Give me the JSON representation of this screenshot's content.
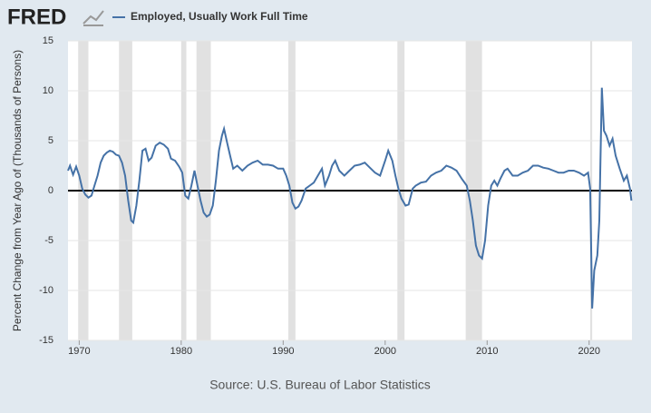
{
  "logo": "FRED",
  "chart_data": {
    "type": "line",
    "y_label": "Percent Change from Year Ago of (Thousands of Persons)",
    "source": "Source: U.S. Bureau of Labor Statistics",
    "xlim": [
      1968.9,
      2024.2
    ],
    "xticks": [
      1970,
      1980,
      1990,
      2000,
      2010,
      2020
    ],
    "ylim": [
      -15,
      15
    ],
    "yticks": [
      15,
      10,
      5,
      0,
      -5,
      -10,
      -15
    ],
    "grid": true,
    "zero_line": true,
    "recessions": [
      [
        1969.9,
        1970.9
      ],
      [
        1973.9,
        1975.2
      ],
      [
        1980.0,
        1980.5
      ],
      [
        1981.5,
        1982.9
      ],
      [
        1990.5,
        1991.2
      ],
      [
        2001.2,
        2001.9
      ],
      [
        2007.9,
        2009.5
      ],
      [
        2020.1,
        2020.3
      ]
    ],
    "x": [
      1968.9,
      1969.1,
      1969.4,
      1969.7,
      1970.0,
      1970.3,
      1970.6,
      1970.9,
      1971.2,
      1971.5,
      1971.8,
      1972.1,
      1972.4,
      1972.7,
      1973.0,
      1973.3,
      1973.6,
      1973.9,
      1974.2,
      1974.5,
      1974.8,
      1975.1,
      1975.3,
      1975.6,
      1975.9,
      1976.2,
      1976.5,
      1976.8,
      1977.1,
      1977.5,
      1977.9,
      1978.3,
      1978.7,
      1979.0,
      1979.4,
      1979.8,
      1980.1,
      1980.4,
      1980.7,
      1981.0,
      1981.3,
      1981.6,
      1981.9,
      1982.2,
      1982.5,
      1982.8,
      1983.1,
      1983.4,
      1983.7,
      1984.0,
      1984.2,
      1984.5,
      1984.8,
      1985.1,
      1985.5,
      1986.0,
      1986.5,
      1987.0,
      1987.5,
      1988.0,
      1988.5,
      1989.0,
      1989.5,
      1990.0,
      1990.3,
      1990.6,
      1990.9,
      1991.2,
      1991.5,
      1991.8,
      1992.2,
      1992.6,
      1993.0,
      1993.4,
      1993.8,
      1994.1,
      1994.5,
      1994.8,
      1995.1,
      1995.5,
      1996.0,
      1996.5,
      1997.0,
      1997.5,
      1998.0,
      1998.5,
      1999.0,
      1999.5,
      2000.0,
      2000.3,
      2000.7,
      2001.0,
      2001.3,
      2001.6,
      2002.0,
      2002.3,
      2002.7,
      2003.0,
      2003.5,
      2004.0,
      2004.5,
      2005.0,
      2005.5,
      2006.0,
      2006.5,
      2007.0,
      2007.5,
      2008.0,
      2008.3,
      2008.6,
      2008.9,
      2009.2,
      2009.5,
      2009.8,
      2010.1,
      2010.4,
      2010.7,
      2011.0,
      2011.3,
      2011.7,
      2012.0,
      2012.5,
      2013.0,
      2013.5,
      2014.0,
      2014.5,
      2015.0,
      2015.5,
      2016.0,
      2016.5,
      2017.0,
      2017.5,
      2018.0,
      2018.5,
      2019.0,
      2019.5,
      2019.9,
      2020.1,
      2020.3,
      2020.5,
      2020.8,
      2021.0,
      2021.25,
      2021.45,
      2021.7,
      2022.0,
      2022.3,
      2022.6,
      2023.0,
      2023.4,
      2023.7,
      2024.0,
      2024.15
    ],
    "series": [
      {
        "name": "Employed, Usually Work Full Time",
        "color": "#4572a7",
        "values": [
          2.0,
          2.5,
          1.6,
          2.4,
          1.5,
          0.2,
          -0.4,
          -0.7,
          -0.5,
          0.5,
          1.5,
          2.8,
          3.5,
          3.8,
          4.0,
          3.9,
          3.6,
          3.5,
          2.8,
          1.5,
          -1.0,
          -3.0,
          -3.2,
          -1.5,
          1.0,
          4.0,
          4.2,
          3.0,
          3.3,
          4.5,
          4.8,
          4.6,
          4.2,
          3.2,
          3.0,
          2.4,
          1.8,
          -0.5,
          -0.8,
          0.5,
          2.0,
          0.5,
          -1.0,
          -2.2,
          -2.6,
          -2.4,
          -1.5,
          1.0,
          4.0,
          5.5,
          6.2,
          4.8,
          3.5,
          2.2,
          2.5,
          2.0,
          2.5,
          2.8,
          3.0,
          2.6,
          2.6,
          2.5,
          2.2,
          2.2,
          1.5,
          0.5,
          -1.2,
          -1.8,
          -1.6,
          -1.0,
          0.2,
          0.5,
          0.8,
          1.5,
          2.2,
          0.5,
          1.5,
          2.5,
          3.0,
          2.0,
          1.5,
          2.0,
          2.5,
          2.6,
          2.8,
          2.3,
          1.8,
          1.5,
          3.0,
          4.0,
          3.0,
          1.5,
          0.2,
          -0.8,
          -1.5,
          -1.4,
          0.2,
          0.5,
          0.8,
          0.9,
          1.5,
          1.8,
          2.0,
          2.5,
          2.3,
          2.0,
          1.2,
          0.5,
          -1.0,
          -3.0,
          -5.5,
          -6.5,
          -6.8,
          -5.0,
          -1.5,
          0.5,
          1.0,
          0.5,
          1.2,
          2.0,
          2.2,
          1.5,
          1.5,
          1.8,
          2.0,
          2.5,
          2.5,
          2.3,
          2.2,
          2.0,
          1.8,
          1.8,
          2.0,
          2.0,
          1.8,
          1.5,
          1.8,
          0.2,
          -11.8,
          -8.0,
          -6.5,
          -3.0,
          10.3,
          6.0,
          5.5,
          4.5,
          5.2,
          3.5,
          2.2,
          1.0,
          1.5,
          0.2,
          -1.0
        ]
      }
    ]
  }
}
